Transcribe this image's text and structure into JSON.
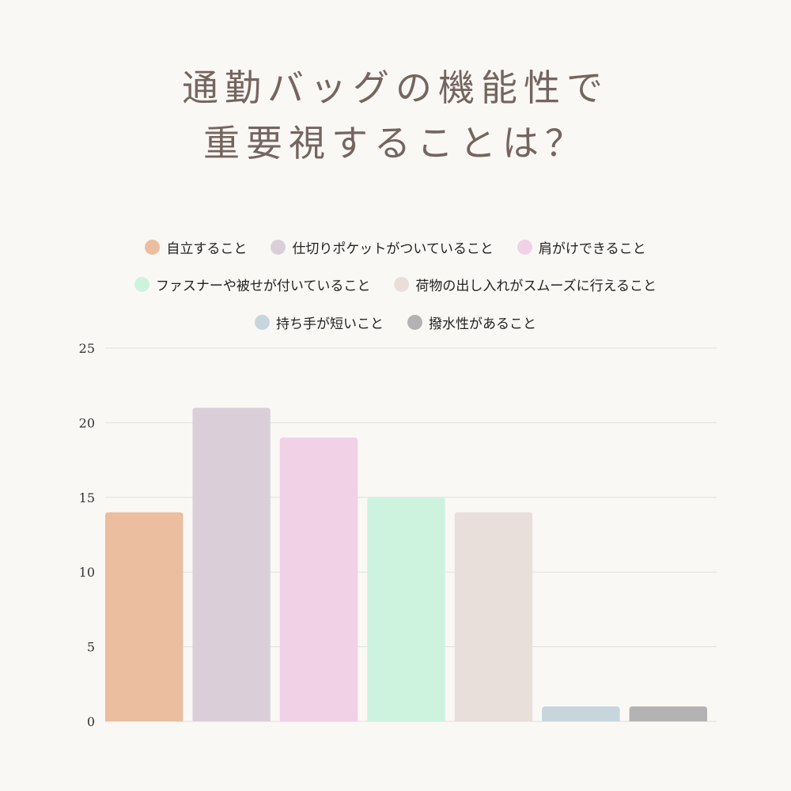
{
  "title": {
    "line1": "通勤バッグの機能性で",
    "line2": "重要視することは？"
  },
  "chart_data": {
    "type": "bar",
    "title": "通勤バッグの機能性で重要視することは？",
    "xlabel": "",
    "ylabel": "",
    "ylim": [
      0,
      25
    ],
    "yticks": [
      0,
      5,
      10,
      15,
      20,
      25
    ],
    "grid": true,
    "legend_position": "top",
    "series": [
      {
        "name": "自立すること",
        "value": 14,
        "color": "#eabe9f"
      },
      {
        "name": "仕切りポケットがついていること",
        "value": 21,
        "color": "#dacfd9"
      },
      {
        "name": "肩がけできること",
        "value": 19,
        "color": "#f0d1e6"
      },
      {
        "name": "ファスナーや被せが付いていること",
        "value": 15,
        "color": "#cdf3df"
      },
      {
        "name": "荷物の出し入れがスムーズに行えること",
        "value": 14,
        "color": "#e8dfda"
      },
      {
        "name": "持ち手が短いこと",
        "value": 1,
        "color": "#c7d6dc"
      },
      {
        "name": "撥水性があること",
        "value": 1,
        "color": "#b3b3b3"
      }
    ]
  }
}
